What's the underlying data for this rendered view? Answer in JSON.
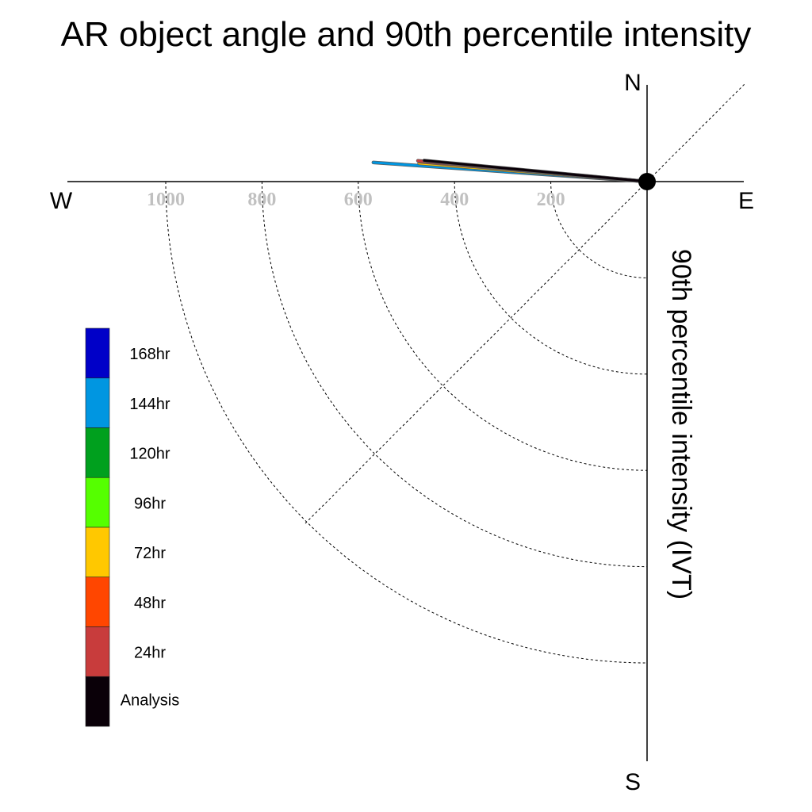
{
  "chart_data": {
    "type": "polar-vector",
    "title": "AR object angle and 90th percentile intensity",
    "radial_axis_label": "90th percentile intensity (IVT)",
    "radial_ticks": [
      200,
      400,
      600,
      800,
      1000
    ],
    "rlim": [
      0,
      1200
    ],
    "compass": {
      "north": "N",
      "south": "S",
      "east": "E",
      "west": "W"
    },
    "grid": true,
    "series": [
      {
        "name": "168hr",
        "color": "#0000c8",
        "angle_deg": null,
        "intensity": null
      },
      {
        "name": "144hr",
        "color": "#0096e1",
        "angle_deg": 4,
        "intensity": 570
      },
      {
        "name": "120hr",
        "color": "#00a01e",
        "angle_deg": null,
        "intensity": null
      },
      {
        "name": "96hr",
        "color": "#55ff00",
        "angle_deg": null,
        "intensity": null
      },
      {
        "name": "72hr",
        "color": "#ffc800",
        "angle_deg": 4.6,
        "intensity": 475
      },
      {
        "name": "48hr",
        "color": "#ff4600",
        "angle_deg": 5,
        "intensity": 475
      },
      {
        "name": "24hr",
        "color": "#c83c3c",
        "angle_deg": 5.2,
        "intensity": 478
      },
      {
        "name": "Analysis",
        "color": "#0a0008",
        "angle_deg": 5.4,
        "intensity": 465
      }
    ],
    "legend_position": "left"
  }
}
